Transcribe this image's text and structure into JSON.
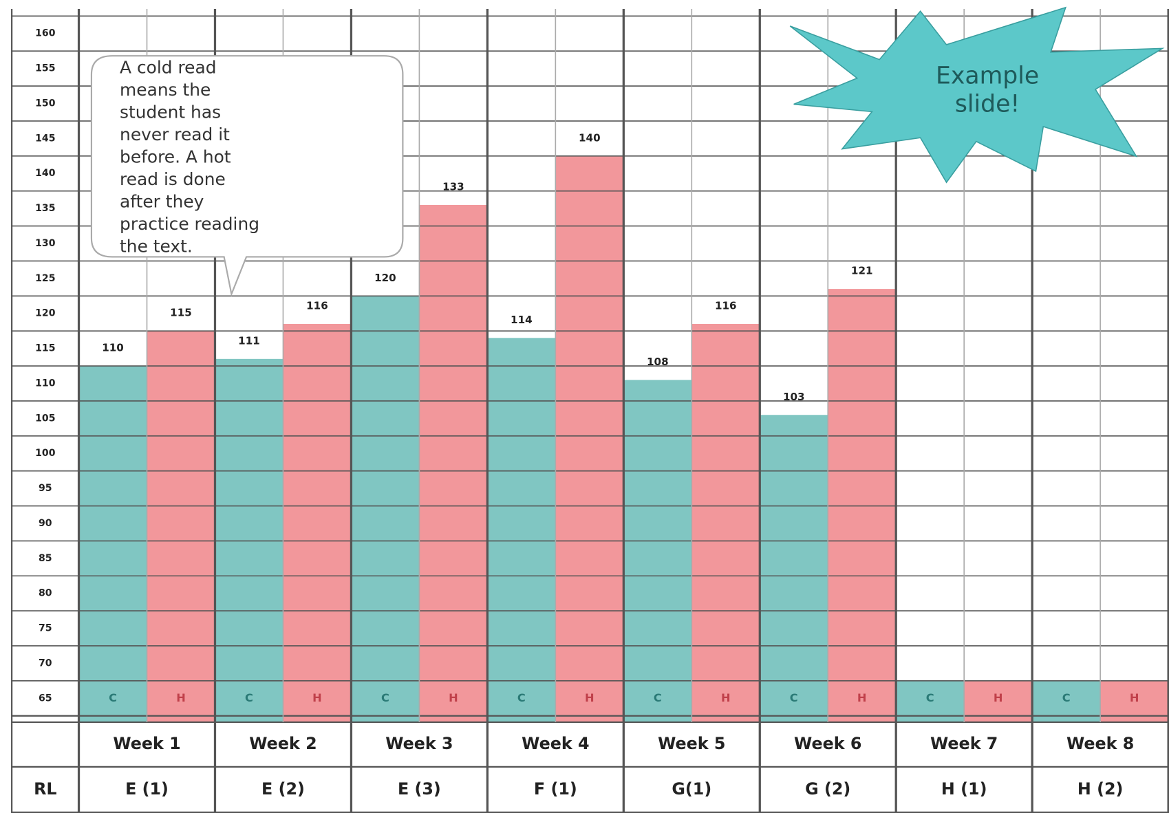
{
  "chart_data": {
    "type": "bar",
    "categories": [
      "Week 1",
      "Week 2",
      "Week 3",
      "Week 4",
      "Week 5",
      "Week 6",
      "Week 7",
      "Week 8"
    ],
    "series": [
      {
        "name": "C",
        "color": "#80c6c2",
        "values": [
          110,
          111,
          120,
          114,
          108,
          103,
          null,
          null
        ]
      },
      {
        "name": "H",
        "color": "#f2979b",
        "values": [
          115,
          116,
          133,
          140,
          116,
          121,
          null,
          null
        ]
      }
    ],
    "ylim": [
      60,
      160
    ],
    "yticks": [
      65,
      70,
      75,
      80,
      85,
      90,
      95,
      100,
      105,
      110,
      115,
      120,
      125,
      130,
      135,
      140,
      145,
      150,
      155,
      160
    ],
    "grid": true,
    "row_header": "RL",
    "reading_levels": [
      "E (1)",
      "E (2)",
      "E (3)",
      "F (1)",
      "G(1)",
      "G (2)",
      "H (1)",
      "H (2)"
    ],
    "annotations": [
      [
        "A cold read",
        "means the",
        "student has",
        "never read it",
        "before. A hot",
        "read is done",
        "after they",
        "practice reading",
        "the text."
      ],
      [
        "Example",
        "slide!"
      ]
    ]
  }
}
